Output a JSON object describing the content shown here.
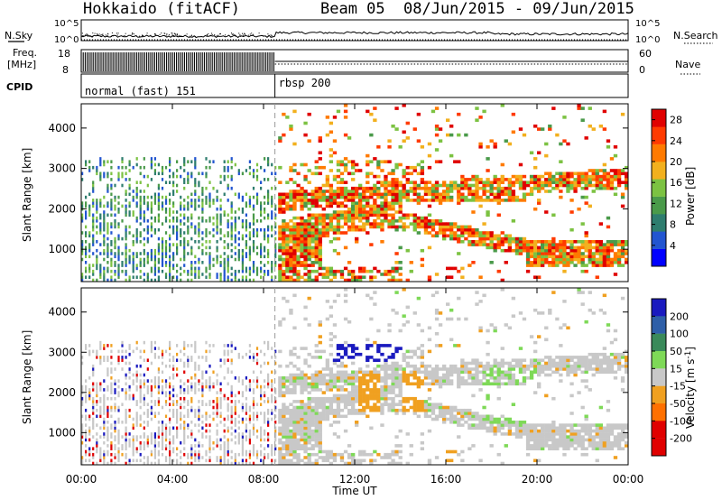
{
  "header": {
    "station": "Hokkaido (fitACF)",
    "beam": "Beam 05",
    "date_range": "08/Jun/2015 - 09/Jun/2015"
  },
  "strip_labels": {
    "nsky": "N.Sky",
    "nsearch": "N.Search",
    "freq_line1": "Freq.",
    "freq_line2": "[MHz]",
    "nave": "Nave",
    "cpid": "CPID",
    "nsky_ticks": [
      "10^5",
      "10^0"
    ],
    "nsearch_ticks": [
      "10^5",
      "10^0"
    ],
    "freq_ticks": [
      "18",
      "8"
    ],
    "nave_ticks": [
      "60",
      "0"
    ]
  },
  "cpid_segments": [
    {
      "label": "normal (fast) 151",
      "start_hour": 0,
      "end_hour": 8.5
    },
    {
      "label": "rbsp 200",
      "start_hour": 8.5,
      "end_hour": 24
    }
  ],
  "x_axis": {
    "title": "Time UT",
    "tick_labels": [
      "00:00",
      "04:00",
      "08:00",
      "12:00",
      "16:00",
      "20:00",
      "00:00"
    ],
    "tick_hours": [
      0,
      4,
      8,
      12,
      16,
      20,
      24
    ],
    "range_hours": [
      0,
      24
    ]
  },
  "chart_data": [
    {
      "type": "heatmap",
      "ylabel": "Slant Range [km]",
      "y_tick_labels": [
        "1000",
        "2000",
        "3000",
        "4000"
      ],
      "y_ticks": [
        1000,
        2000,
        3000,
        4000
      ],
      "ylim": [
        200,
        4600
      ],
      "colorbar": {
        "label": "Power [dB]",
        "tick_labels": [
          "4",
          "8",
          "12",
          "16",
          "20",
          "24",
          "28"
        ],
        "ticks": [
          4,
          8,
          12,
          16,
          20,
          24,
          28
        ],
        "range": [
          0,
          30
        ],
        "colors": [
          "#0000ff",
          "#2255d0",
          "#2e7d6e",
          "#4a9a4a",
          "#7cc242",
          "#f2b01e",
          "#ff7a00",
          "#ff3a00",
          "#e00000"
        ]
      }
    },
    {
      "type": "heatmap",
      "ylabel": "Velocity [m s^-1]",
      "slant_label": "Slant Range [km]",
      "y_tick_labels": [
        "1000",
        "2000",
        "3000",
        "4000"
      ],
      "y_ticks": [
        1000,
        2000,
        3000,
        4000
      ],
      "ylim": [
        200,
        4600
      ],
      "colorbar": {
        "label": "Velocity [m s",
        "label_sup": "-1",
        "label_end": "]",
        "tick_labels": [
          "200",
          "100",
          "50",
          "15",
          "-15",
          "-50",
          "-100",
          "-200"
        ],
        "bands": [
          "#1a1abf",
          "#2e5fa8",
          "#3a8a5a",
          "#7ed957",
          "#c8c8c8",
          "#f0a020",
          "#ff7000",
          "#e00000",
          "#e00000"
        ]
      }
    }
  ]
}
